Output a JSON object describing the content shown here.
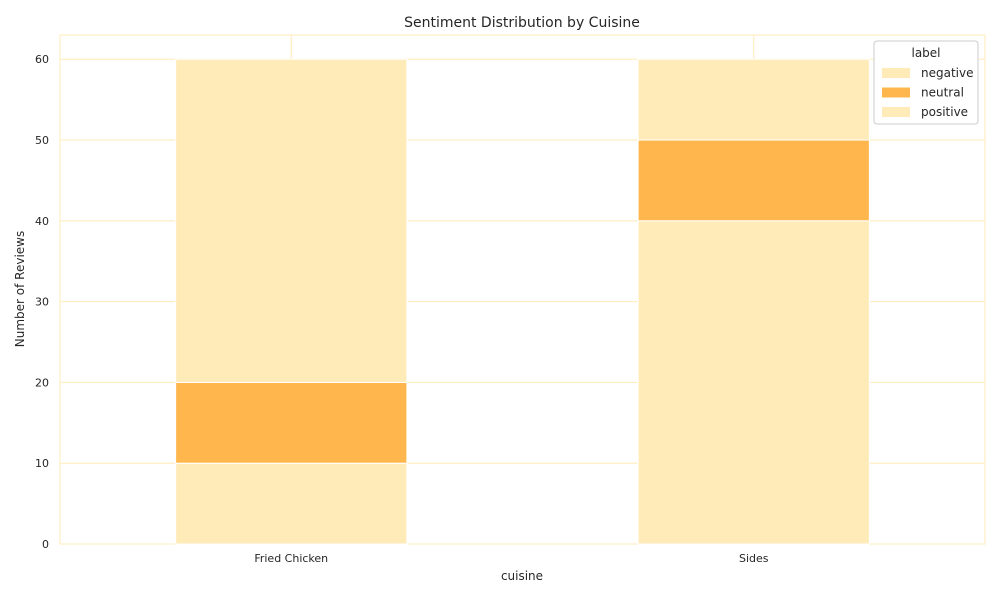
{
  "chart_data": {
    "type": "bar",
    "stacked": true,
    "title": "Sentiment Distribution by Cuisine",
    "xlabel": "cuisine",
    "ylabel": "Number of Reviews",
    "categories": [
      "Fried Chicken",
      "Sides"
    ],
    "ylim": [
      0,
      63
    ],
    "yticks": [
      0,
      10,
      20,
      30,
      40,
      50,
      60
    ],
    "series": [
      {
        "name": "negative",
        "values": [
          10,
          40
        ],
        "color": "#FFEBB8"
      },
      {
        "name": "neutral",
        "values": [
          10,
          10
        ],
        "color": "#FFB74D"
      },
      {
        "name": "positive",
        "values": [
          40,
          10
        ],
        "color": "#FFEBB8"
      }
    ],
    "legend": {
      "title": "label",
      "placement": "top-right"
    },
    "grid": true,
    "grid_color": "#FFEBB8"
  }
}
